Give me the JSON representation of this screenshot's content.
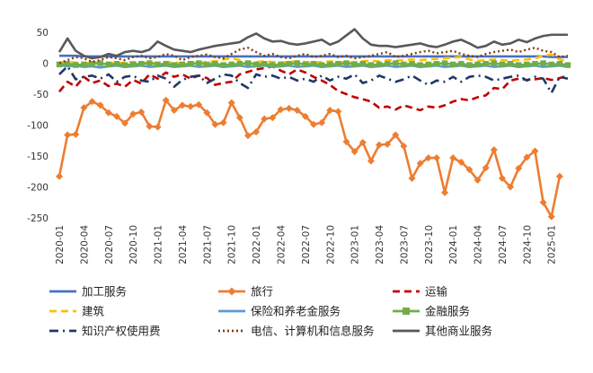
{
  "chart_data": {
    "type": "line",
    "title": "",
    "xlabel": "",
    "ylabel": "",
    "ylim": [
      -250,
      50
    ],
    "yticks": [
      50,
      0,
      -50,
      -100,
      -150,
      -200,
      -250
    ],
    "grid": false,
    "legend_position": "bottom",
    "x": [
      "2020-01",
      "2020-02",
      "2020-03",
      "2020-04",
      "2020-05",
      "2020-06",
      "2020-07",
      "2020-08",
      "2020-09",
      "2020-10",
      "2020-11",
      "2020-12",
      "2021-01",
      "2021-02",
      "2021-03",
      "2021-04",
      "2021-05",
      "2021-06",
      "2021-07",
      "2021-08",
      "2021-09",
      "2021-10",
      "2021-11",
      "2021-12",
      "2022-01",
      "2022-02",
      "2022-03",
      "2022-04",
      "2022-05",
      "2022-06",
      "2022-07",
      "2022-08",
      "2022-09",
      "2022-10",
      "2022-11",
      "2022-12",
      "2023-01",
      "2023-02",
      "2023-03",
      "2023-04",
      "2023-05",
      "2023-06",
      "2023-07",
      "2023-08",
      "2023-09",
      "2023-10",
      "2023-11",
      "2023-12",
      "2024-01",
      "2024-02",
      "2024-03",
      "2024-04",
      "2024-05",
      "2024-06",
      "2024-07",
      "2024-08",
      "2024-09",
      "2024-10",
      "2024-11",
      "2024-12",
      "2025-01",
      "2025-02",
      "2025-03"
    ],
    "x_tick_labels": [
      "2020-01",
      "2020-04",
      "2020-07",
      "2020-10",
      "2021-01",
      "2021-04",
      "2021-07",
      "2021-10",
      "2022-01",
      "2022-04",
      "2022-07",
      "2022-10",
      "2023-01",
      "2023-04",
      "2023-07",
      "2023-10",
      "2024-01",
      "2024-04",
      "2024-07",
      "2024-10",
      "2025-01"
    ],
    "series": [
      {
        "name": "加工服务",
        "color": "#4472c4",
        "dash": "solid",
        "marker": "none",
        "values": [
          12,
          12,
          12,
          11,
          11,
          11,
          11,
          11,
          11,
          11,
          11,
          11,
          11,
          11,
          11,
          11,
          11,
          11,
          11,
          11,
          11,
          11,
          11,
          11,
          11,
          11,
          11,
          11,
          11,
          11,
          11,
          11,
          11,
          11,
          11,
          11,
          11,
          11,
          11,
          11,
          11,
          11,
          11,
          11,
          11,
          11,
          11,
          11,
          11,
          11,
          11,
          11,
          11,
          11,
          11,
          11,
          11,
          11,
          11,
          11,
          10,
          10,
          10
        ]
      },
      {
        "name": "旅行",
        "color": "#ed7d31",
        "dash": "solid",
        "marker": "diamond",
        "values": [
          -183,
          -116,
          -115,
          -72,
          -62,
          -68,
          -80,
          -86,
          -97,
          -82,
          -79,
          -102,
          -103,
          -60,
          -76,
          -68,
          -70,
          -67,
          -80,
          -99,
          -96,
          -64,
          -88,
          -117,
          -111,
          -90,
          -88,
          -75,
          -73,
          -76,
          -86,
          -99,
          -96,
          -76,
          -78,
          -127,
          -143,
          -128,
          -158,
          -132,
          -131,
          -116,
          -134,
          -186,
          -162,
          -153,
          -153,
          -209,
          -153,
          -160,
          -172,
          -189,
          -169,
          -140,
          -186,
          -200,
          -170,
          -152,
          -142,
          -225,
          -248,
          -183,
          null
        ]
      },
      {
        "name": "运输",
        "color": "#c00000",
        "dash": "dash",
        "marker": "none",
        "values": [
          -46,
          -30,
          -38,
          -22,
          -32,
          -28,
          -37,
          -33,
          -38,
          -27,
          -33,
          -18,
          -25,
          -15,
          -22,
          -18,
          -25,
          -20,
          -24,
          -35,
          -32,
          -30,
          -18,
          -14,
          -10,
          -8,
          -5,
          -12,
          -18,
          -10,
          -15,
          -22,
          -28,
          -35,
          -45,
          -50,
          -55,
          -58,
          -62,
          -72,
          -70,
          -75,
          -68,
          -72,
          -76,
          -70,
          -72,
          -68,
          -62,
          -58,
          -60,
          -55,
          -52,
          -40,
          -42,
          -28,
          -25,
          -27,
          -26,
          -24,
          -27,
          -24,
          -20
        ]
      },
      {
        "name": "建筑",
        "color": "#ffc000",
        "dash": "dash",
        "marker": "none",
        "values": [
          1,
          2,
          1,
          0,
          1,
          2,
          1,
          0,
          1,
          2,
          1,
          0,
          1,
          2,
          1,
          0,
          2,
          1,
          2,
          3,
          6,
          8,
          5,
          1,
          2,
          3,
          2,
          1,
          2,
          3,
          2,
          1,
          2,
          3,
          2,
          1,
          2,
          3,
          4,
          3,
          5,
          4,
          5,
          6,
          5,
          6,
          7,
          8,
          9,
          10,
          6,
          4,
          5,
          6,
          5,
          4,
          5,
          6,
          8,
          12,
          14,
          6,
          3
        ]
      },
      {
        "name": "保险和养老金服务",
        "color": "#5b9bd5",
        "dash": "solid",
        "marker": "none",
        "values": [
          -3,
          -5,
          -4,
          -6,
          -5,
          -7,
          -5,
          -4,
          -6,
          -5,
          -4,
          -6,
          -5,
          -4,
          -6,
          -5,
          -4,
          -6,
          -5,
          -4,
          -6,
          -5,
          -4,
          -6,
          -5,
          -4,
          -6,
          -5,
          -4,
          -6,
          -5,
          -4,
          -6,
          -5,
          -4,
          -6,
          -5,
          -4,
          -6,
          -5,
          -4,
          -6,
          -5,
          -4,
          -6,
          -5,
          -4,
          -6,
          -5,
          -4,
          -6,
          -5,
          -4,
          -6,
          -5,
          -4,
          -6,
          -5,
          -4,
          -6,
          -5,
          -4,
          -6
        ]
      },
      {
        "name": "金融服务",
        "color": "#70ad47",
        "dash": "solid",
        "marker": "square",
        "values": [
          -2,
          -1,
          -3,
          -2,
          -1,
          0,
          -2,
          -1,
          -3,
          -2,
          -1,
          0,
          -2,
          -1,
          -3,
          -2,
          -1,
          0,
          -2,
          -1,
          -3,
          -2,
          -1,
          0,
          -2,
          -1,
          -3,
          -2,
          -1,
          0,
          -2,
          -1,
          -3,
          -2,
          -1,
          0,
          -2,
          -1,
          -3,
          -2,
          -1,
          0,
          -2,
          -1,
          -3,
          -2,
          -1,
          0,
          -2,
          -1,
          -3,
          -2,
          -1,
          0,
          -2,
          -1,
          -3,
          -2,
          -1,
          0,
          -2,
          -1,
          -3
        ]
      },
      {
        "name": "知识产权使用费",
        "color": "#1f3864",
        "dash": "dashdot",
        "marker": "none",
        "values": [
          -18,
          -5,
          -26,
          -22,
          -20,
          -25,
          -18,
          -30,
          -22,
          -20,
          -28,
          -30,
          -20,
          -25,
          -38,
          -27,
          -22,
          -20,
          -32,
          -25,
          -18,
          -20,
          -32,
          -40,
          -18,
          -22,
          -20,
          -25,
          -22,
          -28,
          -25,
          -30,
          -20,
          -28,
          -22,
          -25,
          -18,
          -32,
          -28,
          -20,
          -25,
          -30,
          -26,
          -20,
          -28,
          -35,
          -28,
          -30,
          -22,
          -30,
          -22,
          -20,
          -22,
          -28,
          -25,
          -22,
          -20,
          -28,
          -22,
          -25,
          -48,
          -22,
          -25
        ]
      },
      {
        "name": "电信、计算机和信息服务",
        "color": "#843c0c",
        "dash": "dot",
        "marker": "none",
        "values": [
          0,
          5,
          10,
          8,
          2,
          5,
          10,
          8,
          5,
          10,
          12,
          8,
          10,
          15,
          12,
          5,
          10,
          12,
          14,
          10,
          8,
          15,
          22,
          25,
          18,
          12,
          15,
          10,
          8,
          12,
          15,
          10,
          12,
          15,
          10,
          12,
          8,
          10,
          12,
          15,
          18,
          10,
          12,
          15,
          18,
          20,
          16,
          18,
          20,
          15,
          12,
          10,
          15,
          18,
          20,
          22,
          18,
          22,
          25,
          20,
          18,
          10,
          12
        ]
      },
      {
        "name": "其他商业服务",
        "color": "#595959",
        "dash": "solid",
        "marker": "none",
        "values": [
          18,
          40,
          20,
          12,
          8,
          10,
          15,
          12,
          18,
          20,
          18,
          22,
          35,
          28,
          22,
          20,
          18,
          22,
          25,
          28,
          30,
          32,
          34,
          42,
          48,
          40,
          35,
          36,
          32,
          30,
          32,
          35,
          38,
          30,
          35,
          45,
          55,
          40,
          30,
          28,
          28,
          26,
          28,
          30,
          32,
          28,
          26,
          30,
          35,
          38,
          32,
          25,
          28,
          35,
          30,
          32,
          38,
          34,
          40,
          44,
          46,
          46,
          46
        ]
      }
    ]
  }
}
